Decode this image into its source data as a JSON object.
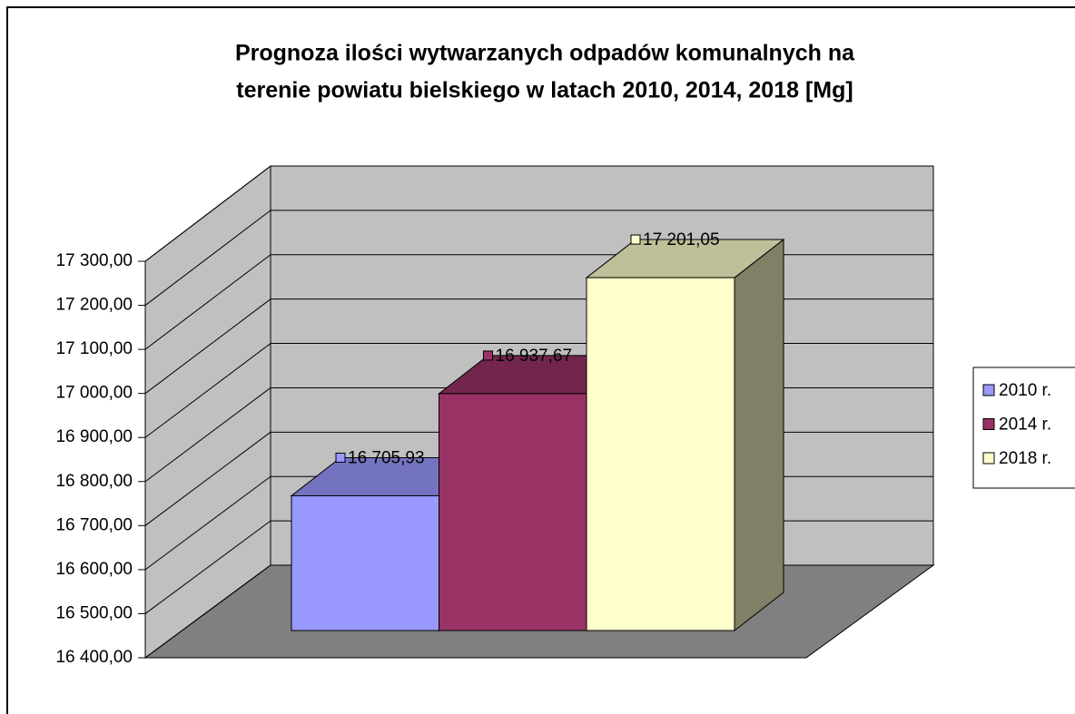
{
  "chart_data": {
    "type": "bar",
    "title": [
      "Prognoza ilości wytwarzanych odpadów komunalnych na",
      "terenie powiatu bielskiego w latach 2010, 2014, 2018 [Mg]"
    ],
    "series": [
      {
        "name": "2010 r.",
        "color": "#9999ff",
        "values": [
          16705.93
        ],
        "value_labels": [
          "16 705,93"
        ]
      },
      {
        "name": "2014 r.",
        "color": "#993366",
        "values": [
          16937.67
        ],
        "value_labels": [
          "16 937,67"
        ]
      },
      {
        "name": "2018 r.",
        "color": "#ffffcc",
        "values": [
          17201.05
        ],
        "value_labels": [
          "17 201,05"
        ]
      }
    ],
    "ylim": [
      16400,
      17300
    ],
    "yticks": [
      {
        "value": 16400,
        "label": "16 400,00"
      },
      {
        "value": 16500,
        "label": "16 500,00"
      },
      {
        "value": 16600,
        "label": "16 600,00"
      },
      {
        "value": 16700,
        "label": "16 700,00"
      },
      {
        "value": 16800,
        "label": "16 800,00"
      },
      {
        "value": 16900,
        "label": "16 900,00"
      },
      {
        "value": 17000,
        "label": "17 000,00"
      },
      {
        "value": 17100,
        "label": "17 100,00"
      },
      {
        "value": 17200,
        "label": "17 200,00"
      },
      {
        "value": 17300,
        "label": "17 300,00"
      }
    ],
    "grid": true,
    "legend": "right"
  }
}
